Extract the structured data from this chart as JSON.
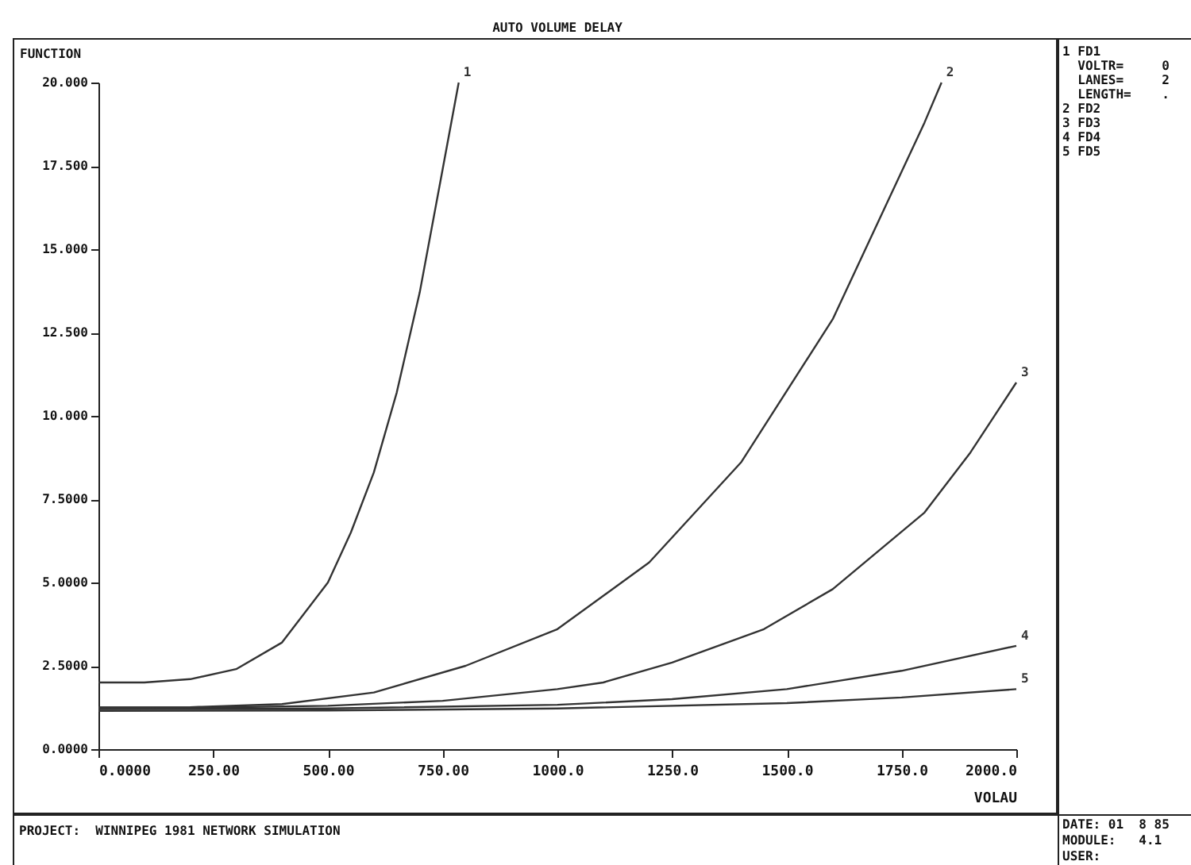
{
  "chart_data": {
    "type": "line",
    "title": "AUTO VOLUME DELAY",
    "xlabel": "VOLAU",
    "ylabel": "FUNCTION",
    "xlim": [
      0,
      2000
    ],
    "ylim": [
      0,
      20
    ],
    "xticks": [
      {
        "value": 0,
        "label": "0.0000"
      },
      {
        "value": 250,
        "label": "250.00"
      },
      {
        "value": 500,
        "label": "500.00"
      },
      {
        "value": 750,
        "label": "750.00"
      },
      {
        "value": 1000,
        "label": "1000.0"
      },
      {
        "value": 1250,
        "label": "1250.0"
      },
      {
        "value": 1500,
        "label": "1500.0"
      },
      {
        "value": 1750,
        "label": "1750.0"
      },
      {
        "value": 2000,
        "label": "2000.0"
      }
    ],
    "yticks": [
      {
        "value": 0,
        "label": "0.0000"
      },
      {
        "value": 2.5,
        "label": "2.5000"
      },
      {
        "value": 5,
        "label": "5.0000"
      },
      {
        "value": 7.5,
        "label": "7.5000"
      },
      {
        "value": 10,
        "label": "10.000"
      },
      {
        "value": 12.5,
        "label": "12.500"
      },
      {
        "value": 15,
        "label": "15.000"
      },
      {
        "value": 17.5,
        "label": "17.500"
      },
      {
        "value": 20,
        "label": "20.000"
      }
    ],
    "grid": false,
    "legend": false,
    "marker": "none",
    "line_style": "solid",
    "series": [
      {
        "name": "1",
        "color": "#333333",
        "x": [
          0,
          100,
          200,
          300,
          400,
          500,
          550,
          600,
          650,
          700,
          750,
          785
        ],
        "values": [
          2.0,
          2.0,
          2.1,
          2.4,
          3.2,
          5.0,
          6.5,
          8.3,
          10.7,
          13.7,
          17.4,
          20.0
        ]
      },
      {
        "name": "2",
        "color": "#333333",
        "x": [
          0,
          200,
          400,
          600,
          800,
          1000,
          1200,
          1400,
          1600,
          1800,
          1837
        ],
        "values": [
          1.25,
          1.26,
          1.35,
          1.7,
          2.5,
          3.6,
          5.6,
          8.6,
          12.9,
          18.8,
          20.0
        ]
      },
      {
        "name": "3",
        "color": "#333333",
        "x": [
          0,
          250,
          500,
          750,
          1000,
          1100,
          1250,
          1450,
          1600,
          1800,
          1900,
          2000
        ],
        "values": [
          1.25,
          1.25,
          1.3,
          1.45,
          1.8,
          2.0,
          2.6,
          3.6,
          4.8,
          7.1,
          8.9,
          11.0
        ]
      },
      {
        "name": "4",
        "color": "#333333",
        "x": [
          0,
          500,
          1000,
          1250,
          1500,
          1750,
          2000
        ],
        "values": [
          1.2,
          1.22,
          1.33,
          1.5,
          1.8,
          2.35,
          3.1
        ]
      },
      {
        "name": "5",
        "color": "#333333",
        "x": [
          0,
          500,
          1000,
          1500,
          1750,
          2000
        ],
        "values": [
          1.15,
          1.16,
          1.22,
          1.38,
          1.55,
          1.8
        ]
      }
    ],
    "annotations": [
      "PROJECT:  WINNIPEG 1981 NETWORK SIMULATION",
      "1 FD1",
      "  VOLTR=     0",
      "  LANES=     2",
      "  LENGTH=    .",
      "2 FD2",
      "3 FD3",
      "4 FD4",
      "5 FD5",
      "DATE: 01  8 85",
      "MODULE:   4.1",
      "USER:"
    ]
  }
}
